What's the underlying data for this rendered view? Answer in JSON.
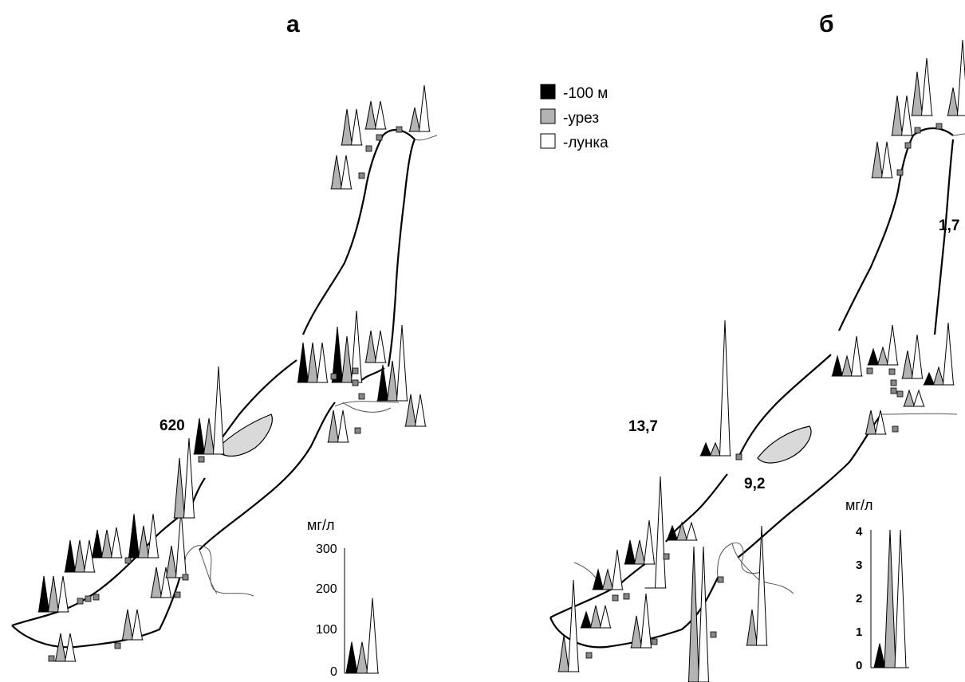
{
  "panels": {
    "a": {
      "label": "а"
    },
    "b": {
      "label": "б"
    }
  },
  "legend": [
    {
      "label": "-100 м",
      "color": "#000000"
    },
    {
      "label": "-урез",
      "color": "#b3b3b3"
    },
    {
      "label": "-лунка",
      "color": "#ffffff"
    }
  ],
  "callouts": {
    "a_peak": "620",
    "b_west": "13,7",
    "b_south": "9,2",
    "b_east": "1,7"
  },
  "scale_a": {
    "unit": "мг/л",
    "ticks": [
      "300",
      "200",
      "100",
      "0"
    ],
    "values": [
      75,
      75,
      180
    ]
  },
  "scale_b": {
    "unit": "мг/л",
    "ticks": [
      "4",
      "3",
      "2",
      "1",
      "0"
    ],
    "values": [
      0.7,
      4.0,
      4.0
    ]
  },
  "colors": {
    "depth_100m": "#000000",
    "shoreline": "#b3b3b3",
    "ice_hole": "#ffffff",
    "island": "#d9d9d9"
  }
}
